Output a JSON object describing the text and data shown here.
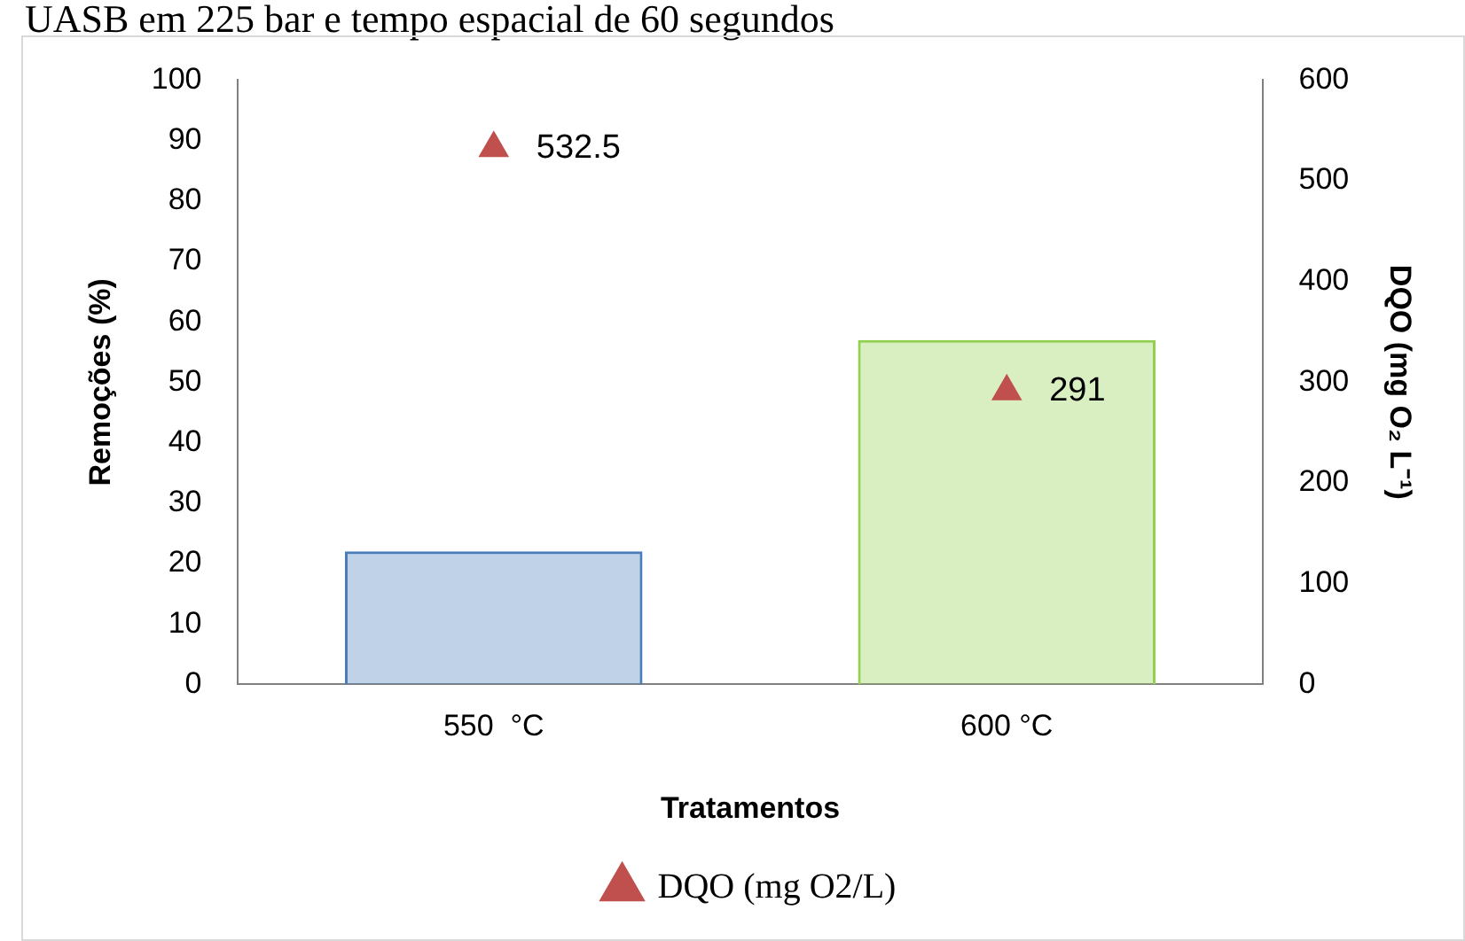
{
  "chart_data": {
    "type": "bar",
    "title": "UASB em 225 bar e tempo espacial de 60 segundos",
    "xlabel": "Tratamentos",
    "ylabel": "Remoções (%)",
    "y2label": "DQO (mg O₂ L⁻¹)",
    "categories": [
      "550  °C",
      "600 °C"
    ],
    "series": [
      {
        "colors": [
          "#4a7ebb",
          "#92d050"
        ],
        "values": [
          22,
          57
        ]
      },
      {
        "type": "scatter",
        "name": "DQO (mg O2/L)",
        "axis": "y2",
        "color": "#c0504d",
        "marker": "triangle",
        "x": [
          "550  °C",
          "600 °C"
        ],
        "values": [
          532.5,
          291
        ],
        "value_labels": [
          "532.5",
          "291"
        ]
      }
    ],
    "ylim": [
      0,
      100
    ],
    "yticks": [
      0,
      10,
      20,
      30,
      40,
      50,
      60,
      70,
      80,
      90,
      100
    ],
    "y2lim": [
      0,
      600
    ],
    "y2ticks": [
      0,
      100,
      200,
      300,
      400,
      500,
      600
    ],
    "grid": false,
    "legend": "bottom"
  }
}
